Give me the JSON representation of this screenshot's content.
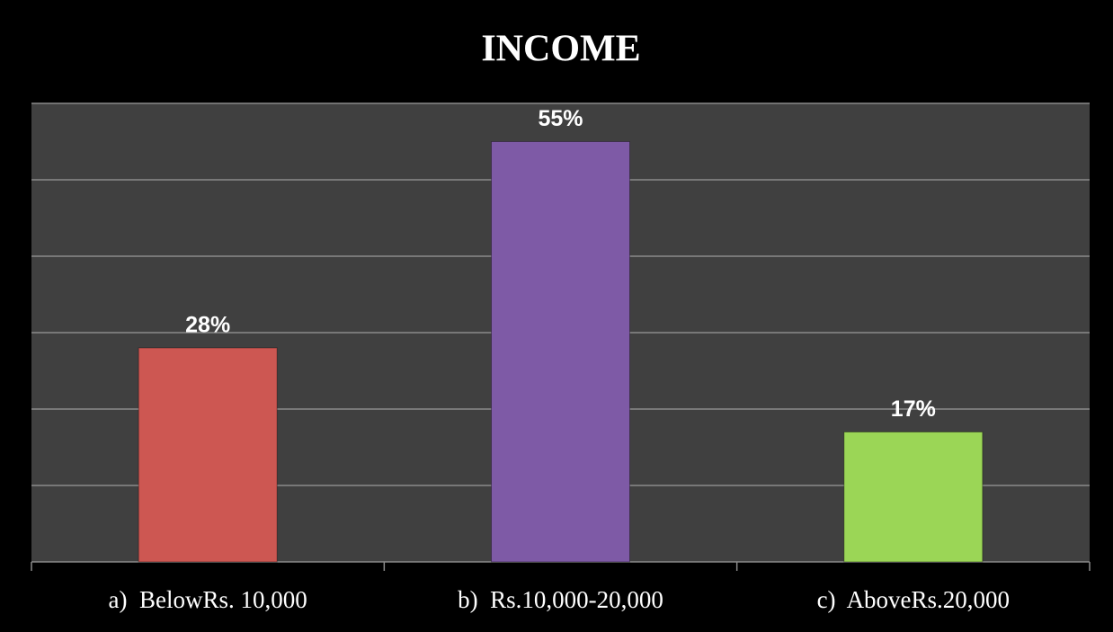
{
  "chart_data": {
    "type": "bar",
    "title": "INCOME",
    "categories": [
      "a)  BelowRs. 10,000",
      "b)  Rs.10,000-20,000",
      "c)  AboveRs.20,000"
    ],
    "values": [
      28,
      55,
      17
    ],
    "value_labels": [
      "28%",
      "55%",
      "17%"
    ],
    "colors": [
      "#cd5752",
      "#7e5aa6",
      "#9bd656"
    ],
    "ylim": [
      0,
      60
    ],
    "yticks": [
      0,
      10,
      20,
      30,
      40,
      50,
      60
    ],
    "grid": true
  }
}
